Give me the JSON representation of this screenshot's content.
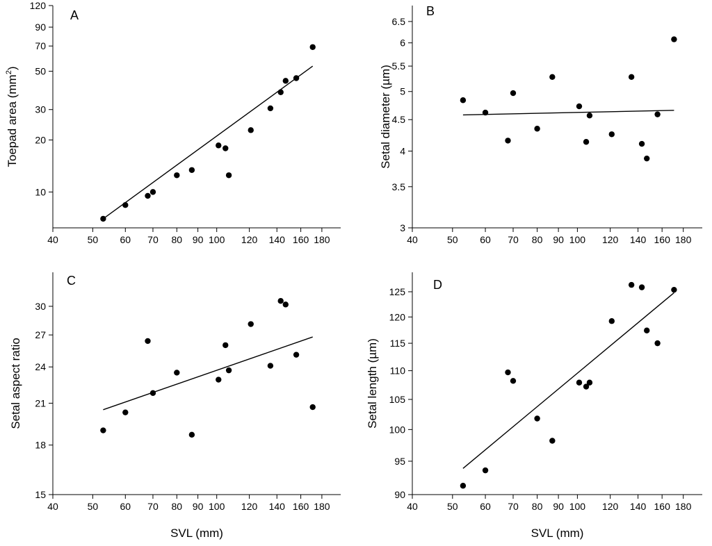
{
  "chart_data": [
    {
      "type": "scatter",
      "panel": "A",
      "ylabel": "Toepad area",
      "ylabel_unit": "mm",
      "ylabel_unit_exp": "2",
      "xlabel": "",
      "x_scale": "log",
      "y_scale": "log",
      "xlim": [
        40,
        200
      ],
      "ylim": [
        6.2,
        120
      ],
      "x_ticks": [
        40,
        50,
        60,
        70,
        80,
        90,
        100,
        120,
        140,
        160,
        180
      ],
      "y_ticks": [
        10,
        20,
        30,
        50,
        70,
        90,
        120
      ],
      "x": [
        53,
        60,
        68,
        70,
        80,
        87,
        101,
        105,
        107,
        121,
        135,
        143,
        147,
        156,
        171
      ],
      "y": [
        7.0,
        8.4,
        9.5,
        10.0,
        12.5,
        13.4,
        18.6,
        17.9,
        12.5,
        22.8,
        30.5,
        37.8,
        44.0,
        45.6,
        69.0
      ],
      "fit_line": {
        "x": [
          53,
          171
        ],
        "y": [
          7.0,
          53.5
        ]
      }
    },
    {
      "type": "scatter",
      "panel": "B",
      "ylabel": "Setal diameter",
      "ylabel_unit": "µm",
      "xlabel": "",
      "x_scale": "log",
      "y_scale": "log",
      "xlim": [
        40,
        200
      ],
      "ylim": [
        3,
        6.9
      ],
      "x_ticks": [
        40,
        50,
        60,
        70,
        80,
        90,
        100,
        120,
        140,
        160,
        180
      ],
      "y_ticks": [
        3,
        3.5,
        4,
        4.5,
        5,
        5.5,
        6,
        6.5
      ],
      "x": [
        53,
        60,
        68,
        70,
        80,
        87,
        101,
        105,
        107,
        121,
        135,
        143,
        147,
        156,
        171
      ],
      "y": [
        4.84,
        4.62,
        4.16,
        4.97,
        4.35,
        5.28,
        4.73,
        4.14,
        4.57,
        4.26,
        5.28,
        4.11,
        3.89,
        4.59,
        6.08
      ],
      "fit_line": {
        "x": [
          53,
          171
        ],
        "y": [
          4.58,
          4.66
        ]
      }
    },
    {
      "type": "scatter",
      "panel": "C",
      "ylabel": "Setal aspect ratio",
      "xlabel": "SVL (mm)",
      "x_scale": "log",
      "y_scale": "log",
      "xlim": [
        40,
        200
      ],
      "ylim": [
        15,
        34
      ],
      "x_ticks": [
        40,
        50,
        60,
        70,
        80,
        90,
        100,
        120,
        140,
        160,
        180
      ],
      "y_ticks": [
        15,
        18,
        21,
        24,
        27,
        30
      ],
      "x": [
        53,
        60,
        68,
        70,
        80,
        87,
        101,
        105,
        107,
        121,
        135,
        143,
        147,
        156,
        171
      ],
      "y": [
        19.0,
        20.3,
        26.4,
        21.8,
        23.5,
        18.7,
        22.9,
        26.0,
        23.7,
        28.1,
        24.1,
        30.6,
        30.2,
        25.1,
        20.7
      ],
      "fit_line": {
        "x": [
          53,
          171
        ],
        "y": [
          20.5,
          26.8
        ]
      }
    },
    {
      "type": "scatter",
      "panel": "D",
      "ylabel": "Setal length",
      "ylabel_unit": "µm",
      "xlabel": "SVL (mm)",
      "x_scale": "log",
      "y_scale": "log",
      "xlim": [
        40,
        200
      ],
      "ylim": [
        90,
        129
      ],
      "x_ticks": [
        40,
        50,
        60,
        70,
        80,
        90,
        100,
        120,
        140,
        160,
        180
      ],
      "y_ticks": [
        90,
        95,
        100,
        105,
        110,
        115,
        120,
        125
      ],
      "x": [
        53,
        60,
        68,
        70,
        80,
        87,
        101,
        105,
        107,
        121,
        135,
        143,
        147,
        156,
        171
      ],
      "y": [
        91.3,
        93.6,
        109.7,
        108.2,
        101.8,
        98.2,
        107.9,
        107.2,
        107.9,
        119.2,
        126.4,
        125.9,
        117.4,
        115.0,
        125.4
      ],
      "fit_line": {
        "x": [
          53,
          171
        ],
        "y": [
          93.9,
          124.8
        ]
      }
    }
  ]
}
